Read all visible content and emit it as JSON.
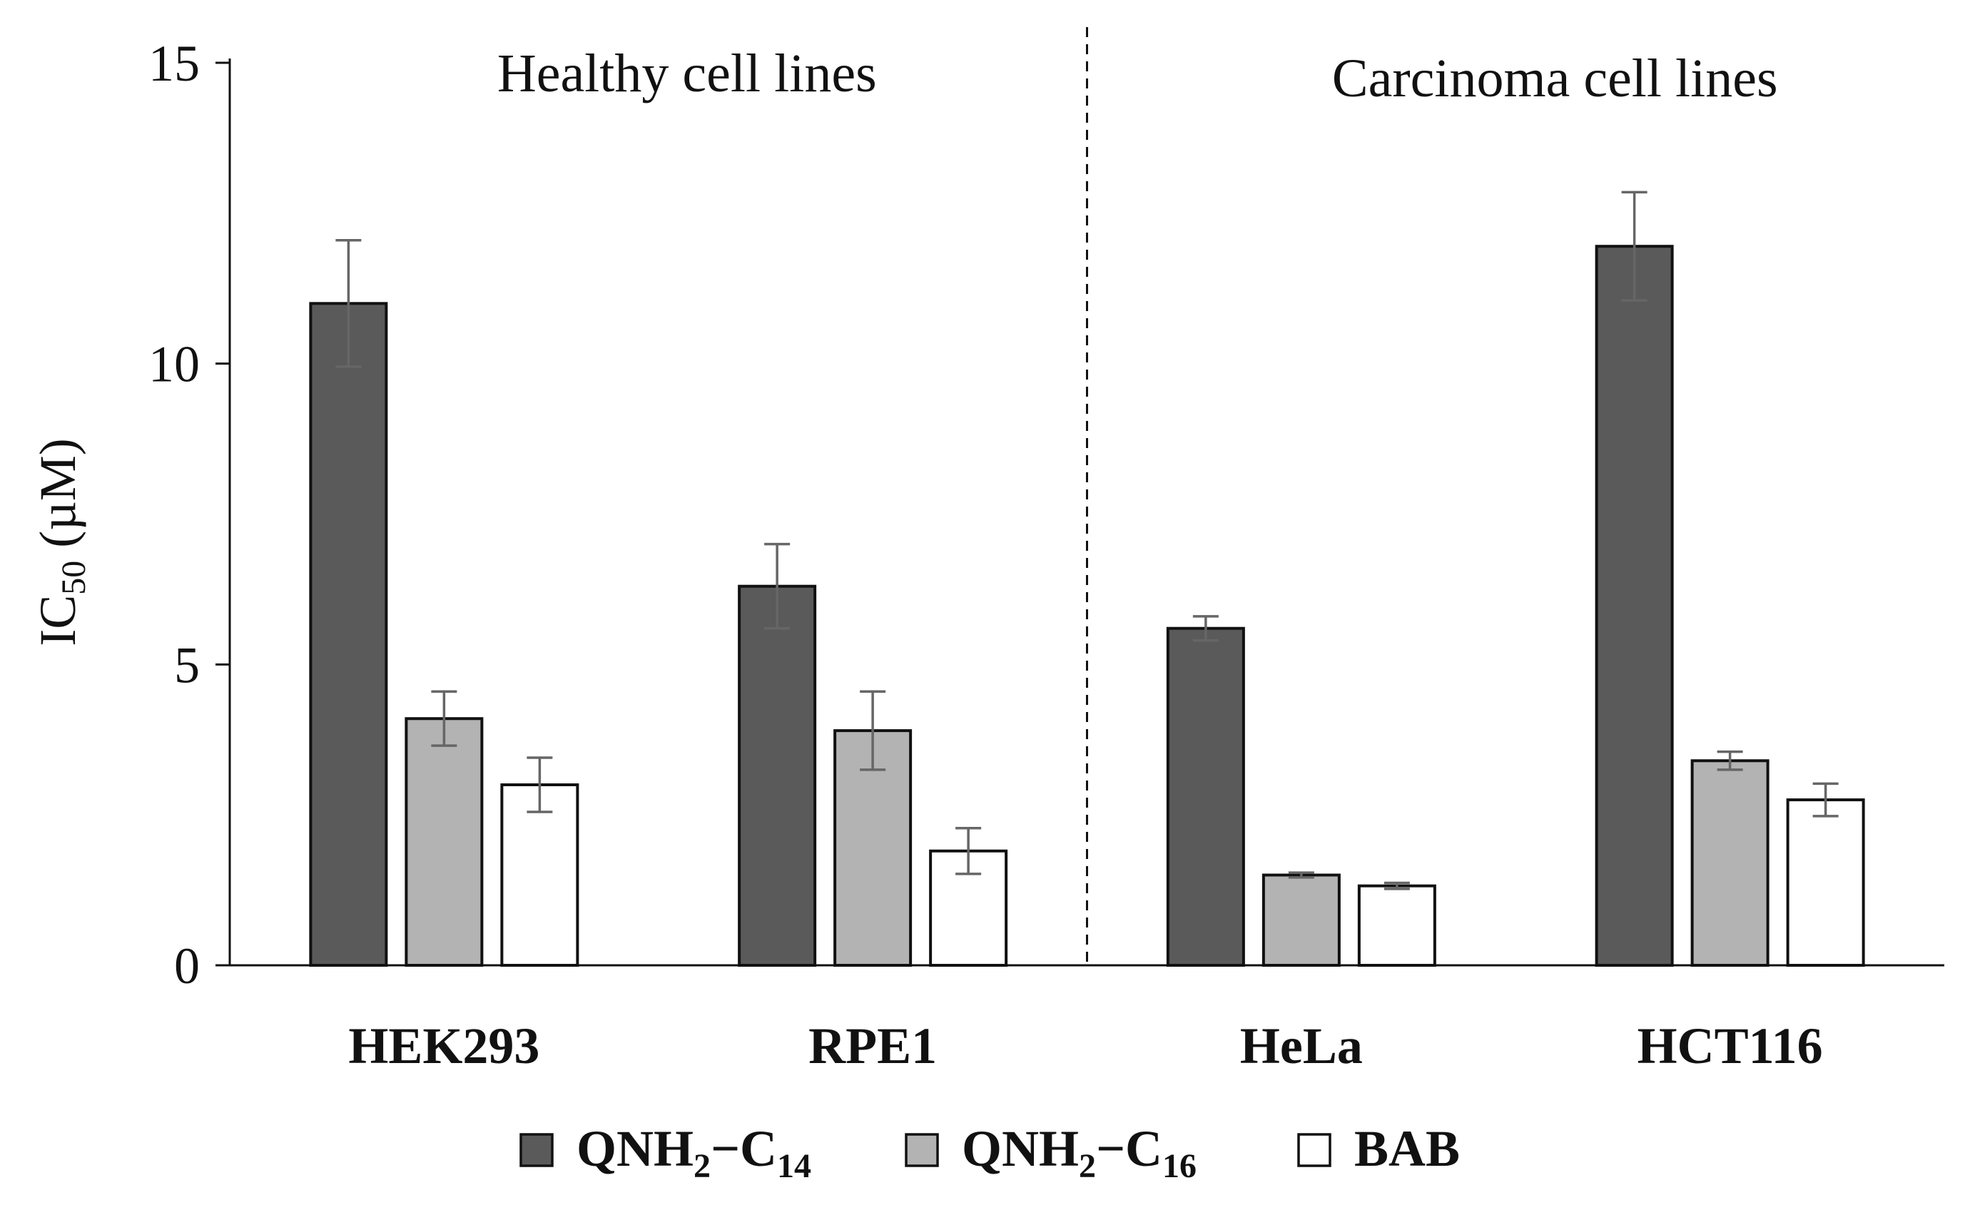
{
  "chart_data": {
    "type": "bar",
    "categories": [
      "HEK293",
      "RPE1",
      "HeLa",
      "HCT116"
    ],
    "series": [
      {
        "name": "QNH2−C14",
        "label_base": "QNH",
        "label_sub1": "2",
        "label_mid": "−C",
        "label_sub2": "14",
        "color": "#5a5a5a",
        "values": [
          11.0,
          6.3,
          5.6,
          11.95
        ],
        "errors": [
          1.05,
          0.7,
          0.2,
          0.9
        ]
      },
      {
        "name": "QNH2−C16",
        "label_base": "QNH",
        "label_sub1": "2",
        "label_mid": "−C",
        "label_sub2": "16",
        "color": "#b3b3b3",
        "values": [
          4.1,
          3.9,
          1.5,
          3.4
        ],
        "errors": [
          0.45,
          0.65,
          0.04,
          0.15
        ]
      },
      {
        "name": "BAB",
        "label_base": "BAB",
        "label_sub1": "",
        "label_mid": "",
        "label_sub2": "",
        "color": "#ffffff",
        "values": [
          3.0,
          1.9,
          1.32,
          2.75
        ],
        "errors": [
          0.45,
          0.38,
          0.05,
          0.27
        ]
      }
    ],
    "ylim": [
      0,
      15
    ],
    "yticks": [
      "0",
      "5",
      "10",
      "15"
    ],
    "ylabel_main": "IC",
    "ylabel_sub": "50",
    "ylabel_unit": " (µM)",
    "group_labels": [
      "Healthy cell lines",
      "Carcinoma cell lines"
    ],
    "divider_between": [
      1,
      2
    ],
    "legend_position": "bottom"
  }
}
